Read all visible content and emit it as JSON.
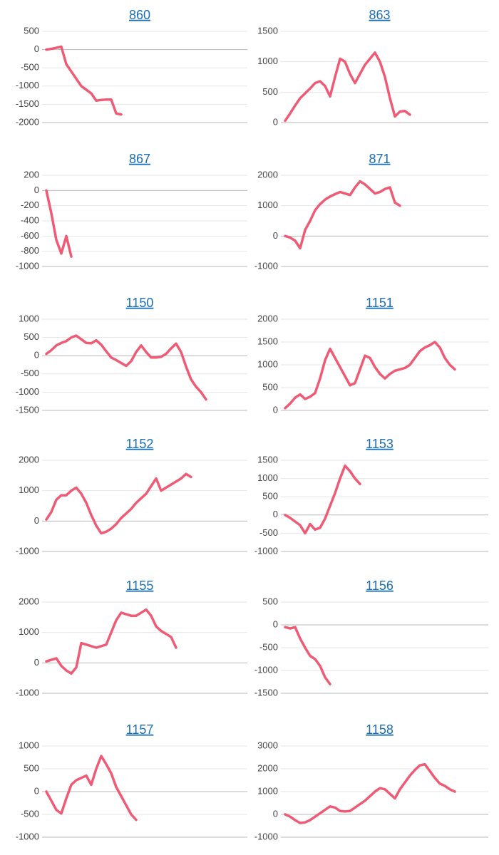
{
  "chart_data": [
    {
      "type": "line",
      "title": "860",
      "color": "#ef5b75",
      "grid": true,
      "ylim": [
        -2000,
        500
      ],
      "yticks": [
        -2000,
        -1500,
        -1000,
        -500,
        0,
        500
      ],
      "values": [
        0,
        20,
        50,
        80,
        -400,
        -600,
        -800,
        -1000,
        -1100,
        -1200,
        -1400,
        -1380,
        -1370,
        -1370,
        -1750,
        -1780
      ]
    },
    {
      "type": "line",
      "title": "863",
      "color": "#ef5b75",
      "grid": true,
      "ylim": [
        0,
        1500
      ],
      "yticks": [
        0,
        500,
        1000,
        1500
      ],
      "values": [
        30,
        150,
        280,
        400,
        480,
        560,
        650,
        680,
        600,
        430,
        750,
        1050,
        1000,
        800,
        650,
        800,
        950,
        1050,
        1150,
        1000,
        750,
        400,
        100,
        180,
        190,
        130
      ]
    },
    {
      "type": "line",
      "title": "867",
      "color": "#ef5b75",
      "grid": true,
      "ylim": [
        -1000,
        200
      ],
      "yticks": [
        -1000,
        -800,
        -600,
        -400,
        -200,
        0,
        200
      ],
      "values": [
        0,
        -300,
        -650,
        -830,
        -600,
        -870
      ]
    },
    {
      "type": "line",
      "title": "871",
      "color": "#ef5b75",
      "grid": true,
      "ylim": [
        -1000,
        2000
      ],
      "yticks": [
        -1000,
        0,
        1000,
        2000
      ],
      "values": [
        0,
        -50,
        -150,
        -400,
        200,
        500,
        850,
        1050,
        1200,
        1300,
        1380,
        1450,
        1400,
        1350,
        1600,
        1800,
        1700,
        1550,
        1400,
        1450,
        1550,
        1600,
        1100,
        1000
      ]
    },
    {
      "type": "line",
      "title": "1150",
      "color": "#ef5b75",
      "grid": true,
      "ylim": [
        -1500,
        1000
      ],
      "yticks": [
        -1500,
        -1000,
        -500,
        0,
        500,
        1000
      ],
      "values": [
        50,
        150,
        280,
        350,
        400,
        500,
        550,
        450,
        350,
        340,
        420,
        300,
        120,
        -50,
        -120,
        -200,
        -280,
        -150,
        100,
        280,
        100,
        -50,
        -50,
        -30,
        50,
        200,
        330,
        100,
        -300,
        -650,
        -850,
        -1000,
        -1200
      ]
    },
    {
      "type": "line",
      "title": "1151",
      "color": "#ef5b75",
      "grid": true,
      "ylim": [
        0,
        2000
      ],
      "yticks": [
        0,
        500,
        1000,
        1500,
        2000
      ],
      "values": [
        50,
        150,
        280,
        350,
        250,
        300,
        380,
        700,
        1100,
        1350,
        1150,
        950,
        750,
        550,
        600,
        900,
        1200,
        1150,
        950,
        800,
        700,
        800,
        870,
        900,
        930,
        1000,
        1150,
        1300,
        1380,
        1430,
        1500,
        1380,
        1150,
        1000,
        900
      ]
    },
    {
      "type": "line",
      "title": "1152",
      "color": "#ef5b75",
      "grid": true,
      "ylim": [
        -1000,
        2000
      ],
      "yticks": [
        -1000,
        0,
        1000,
        2000
      ],
      "values": [
        50,
        300,
        700,
        850,
        850,
        1000,
        1100,
        900,
        600,
        200,
        -150,
        -400,
        -350,
        -250,
        -100,
        100,
        250,
        400,
        600,
        750,
        900,
        1150,
        1400,
        1000,
        1100,
        1200,
        1300,
        1400,
        1550,
        1450
      ]
    },
    {
      "type": "line",
      "title": "1153",
      "color": "#ef5b75",
      "grid": true,
      "ylim": [
        -1000,
        1500
      ],
      "yticks": [
        -1000,
        -500,
        0,
        500,
        1000,
        1500
      ],
      "values": [
        0,
        -80,
        -180,
        -280,
        -500,
        -250,
        -400,
        -350,
        -100,
        250,
        600,
        1000,
        1350,
        1200,
        1000,
        850
      ]
    },
    {
      "type": "line",
      "title": "1155",
      "color": "#ef5b75",
      "grid": true,
      "ylim": [
        -1000,
        2000
      ],
      "yticks": [
        -1000,
        0,
        1000,
        2000
      ],
      "values": [
        50,
        100,
        150,
        -100,
        -250,
        -350,
        -150,
        650,
        600,
        550,
        500,
        550,
        600,
        1000,
        1400,
        1650,
        1600,
        1550,
        1550,
        1650,
        1750,
        1550,
        1200,
        1050,
        950,
        850,
        500
      ]
    },
    {
      "type": "line",
      "title": "1156",
      "color": "#ef5b75",
      "grid": true,
      "ylim": [
        -1500,
        500
      ],
      "yticks": [
        -1500,
        -1000,
        -500,
        0,
        500
      ],
      "values": [
        -50,
        -80,
        -50,
        -300,
        -500,
        -680,
        -750,
        -900,
        -1150,
        -1300
      ]
    },
    {
      "type": "line",
      "title": "1157",
      "color": "#ef5b75",
      "grid": true,
      "ylim": [
        -1000,
        1000
      ],
      "yticks": [
        -1000,
        -500,
        0,
        500,
        1000
      ],
      "values": [
        0,
        -200,
        -400,
        -480,
        -150,
        150,
        250,
        300,
        350,
        150,
        500,
        780,
        600,
        400,
        100,
        -100,
        -300,
        -500,
        -620
      ]
    },
    {
      "type": "line",
      "title": "1158",
      "color": "#ef5b75",
      "grid": true,
      "ylim": [
        -1000,
        3000
      ],
      "yticks": [
        -1000,
        0,
        1000,
        2000,
        3000
      ],
      "values": [
        0,
        -100,
        -250,
        -380,
        -350,
        -250,
        -100,
        50,
        200,
        350,
        300,
        150,
        130,
        150,
        300,
        450,
        600,
        800,
        1000,
        1150,
        1100,
        900,
        700,
        1100,
        1400,
        1700,
        1950,
        2150,
        2200,
        1900,
        1600,
        1350,
        1250,
        1100,
        1000
      ]
    }
  ]
}
